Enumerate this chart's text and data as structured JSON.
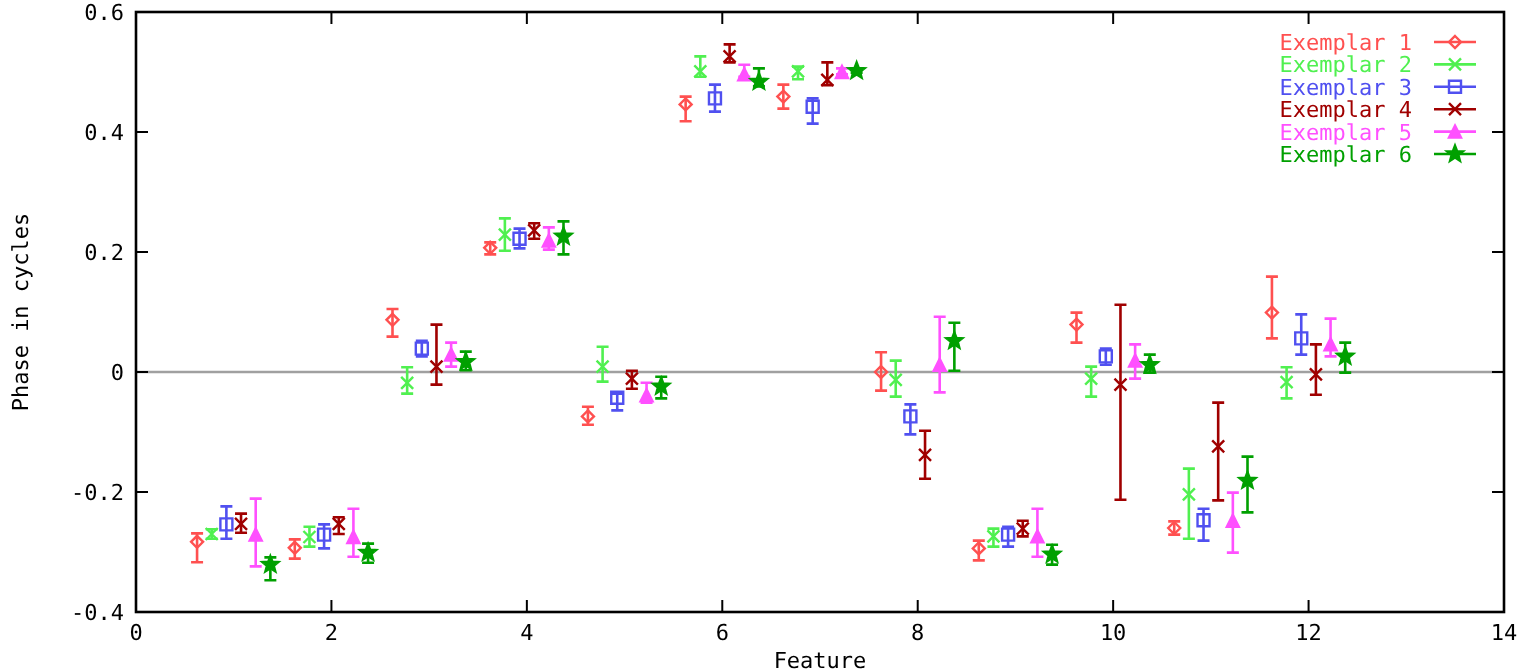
{
  "chart_data": {
    "type": "scatter",
    "xlabel": "Feature",
    "ylabel": "Phase in cycles",
    "xlim": [
      0,
      14
    ],
    "xticks": [
      0,
      2,
      4,
      6,
      8,
      10,
      12,
      14
    ],
    "ylim": [
      -0.4,
      0.6
    ],
    "yticks": [
      -0.4,
      -0.2,
      0,
      0.2,
      0.4,
      0.6
    ],
    "legend": "top right",
    "grid": false,
    "ref_lines": [
      {
        "axis": "y",
        "value": 0,
        "color": "#a0a0a0"
      }
    ],
    "series": [
      {
        "name": "Exemplar 1",
        "color": "#ff5050",
        "marker": "diamond",
        "x": [
          0.625,
          1.625,
          2.625,
          3.625,
          4.625,
          5.625,
          6.625,
          7.625,
          8.625,
          9.625,
          10.625,
          11.625
        ],
        "values": [
          -0.283,
          -0.293,
          0.087,
          0.207,
          -0.074,
          0.446,
          0.459,
          0.0,
          -0.294,
          0.079,
          -0.26,
          0.099
        ],
        "errors": [
          [
            -0.317,
            -0.269
          ],
          [
            -0.311,
            -0.279
          ],
          [
            0.059,
            0.105
          ],
          [
            0.196,
            0.216
          ],
          [
            -0.088,
            -0.058
          ],
          [
            0.418,
            0.459
          ],
          [
            0.439,
            0.479
          ],
          [
            -0.031,
            0.033
          ],
          [
            -0.314,
            -0.281
          ],
          [
            0.049,
            0.099
          ],
          [
            -0.271,
            -0.249
          ],
          [
            0.056,
            0.159
          ]
        ]
      },
      {
        "name": "Exemplar 2",
        "color": "#50f050",
        "marker": "cross",
        "x": [
          0.775,
          1.775,
          2.775,
          3.775,
          4.775,
          5.775,
          6.775,
          7.775,
          8.775,
          9.775,
          10.775,
          11.775
        ],
        "values": [
          -0.27,
          -0.275,
          -0.018,
          0.229,
          0.009,
          0.501,
          0.501,
          -0.013,
          -0.274,
          -0.011,
          -0.204,
          -0.017
        ],
        "errors": [
          [
            -0.278,
            -0.262
          ],
          [
            -0.291,
            -0.258
          ],
          [
            -0.036,
            0.008
          ],
          [
            0.202,
            0.256
          ],
          [
            -0.016,
            0.042
          ],
          [
            0.492,
            0.526
          ],
          [
            0.488,
            0.509
          ],
          [
            -0.041,
            0.019
          ],
          [
            -0.291,
            -0.261
          ],
          [
            -0.041,
            0.009
          ],
          [
            -0.278,
            -0.161
          ],
          [
            -0.044,
            0.008
          ]
        ]
      },
      {
        "name": "Exemplar 3",
        "color": "#5050f0",
        "marker": "square",
        "x": [
          0.925,
          1.925,
          2.925,
          3.925,
          4.925,
          5.925,
          6.925,
          7.925,
          8.925,
          9.925,
          10.925,
          11.925
        ],
        "values": [
          -0.254,
          -0.271,
          0.039,
          0.222,
          -0.043,
          0.456,
          0.442,
          -0.074,
          -0.271,
          0.026,
          -0.247,
          0.056
        ],
        "errors": [
          [
            -0.278,
            -0.224
          ],
          [
            -0.294,
            -0.254
          ],
          [
            0.026,
            0.052
          ],
          [
            0.206,
            0.239
          ],
          [
            -0.064,
            -0.036
          ],
          [
            0.434,
            0.479
          ],
          [
            0.414,
            0.456
          ],
          [
            -0.104,
            -0.054
          ],
          [
            -0.291,
            -0.258
          ],
          [
            0.012,
            0.039
          ],
          [
            -0.281,
            -0.228
          ],
          [
            0.029,
            0.096
          ]
        ]
      },
      {
        "name": "Exemplar 4",
        "color": "#a00000",
        "marker": "cross",
        "x": [
          1.075,
          2.075,
          3.075,
          4.075,
          5.075,
          6.075,
          7.075,
          8.075,
          9.075,
          10.075,
          11.075,
          12.075
        ],
        "values": [
          -0.253,
          -0.253,
          0.009,
          0.236,
          -0.011,
          0.526,
          0.487,
          -0.138,
          -0.261,
          -0.021,
          -0.124,
          -0.004
        ],
        "errors": [
          [
            -0.268,
            -0.236
          ],
          [
            -0.27,
            -0.242
          ],
          [
            -0.021,
            0.079
          ],
          [
            0.222,
            0.248
          ],
          [
            -0.028,
            0.002
          ],
          [
            0.516,
            0.546
          ],
          [
            0.478,
            0.516
          ],
          [
            -0.178,
            -0.098
          ],
          [
            -0.274,
            -0.248
          ],
          [
            -0.213,
            0.112
          ],
          [
            -0.214,
            -0.051
          ],
          [
            -0.038,
            0.046
          ]
        ]
      },
      {
        "name": "Exemplar 5",
        "color": "#ff50ff",
        "marker": "triangle",
        "x": [
          1.225,
          2.225,
          3.225,
          4.225,
          5.225,
          6.225,
          7.225,
          8.225,
          9.225,
          10.225,
          11.225,
          12.225
        ],
        "values": [
          -0.271,
          -0.275,
          0.029,
          0.219,
          -0.039,
          0.496,
          0.5,
          0.012,
          -0.274,
          0.019,
          -0.248,
          0.046
        ],
        "errors": [
          [
            -0.324,
            -0.211
          ],
          [
            -0.308,
            -0.228
          ],
          [
            0.009,
            0.049
          ],
          [
            0.204,
            0.241
          ],
          [
            -0.051,
            -0.018
          ],
          [
            0.492,
            0.512
          ],
          [
            0.496,
            0.506
          ],
          [
            -0.034,
            0.092
          ],
          [
            -0.308,
            -0.228
          ],
          [
            -0.011,
            0.046
          ],
          [
            -0.301,
            -0.201
          ],
          [
            0.026,
            0.089
          ]
        ]
      },
      {
        "name": "Exemplar 6",
        "color": "#00a000",
        "marker": "star",
        "x": [
          1.375,
          2.375,
          3.375,
          4.375,
          5.375,
          6.375,
          7.375,
          8.375,
          9.375,
          10.375,
          11.375,
          12.375
        ],
        "values": [
          -0.321,
          -0.301,
          0.017,
          0.226,
          -0.024,
          0.484,
          0.502,
          0.052,
          -0.304,
          0.012,
          -0.181,
          0.026
        ],
        "errors": [
          [
            -0.347,
            -0.309
          ],
          [
            -0.318,
            -0.286
          ],
          [
            0.003,
            0.034
          ],
          [
            0.196,
            0.251
          ],
          [
            -0.044,
            -0.008
          ],
          [
            0.476,
            0.506
          ],
          [
            0.499,
            0.505
          ],
          [
            0.002,
            0.082
          ],
          [
            -0.321,
            -0.288
          ],
          [
            -0.001,
            0.029
          ],
          [
            -0.234,
            -0.141
          ],
          [
            -0.001,
            0.049
          ]
        ]
      }
    ]
  }
}
